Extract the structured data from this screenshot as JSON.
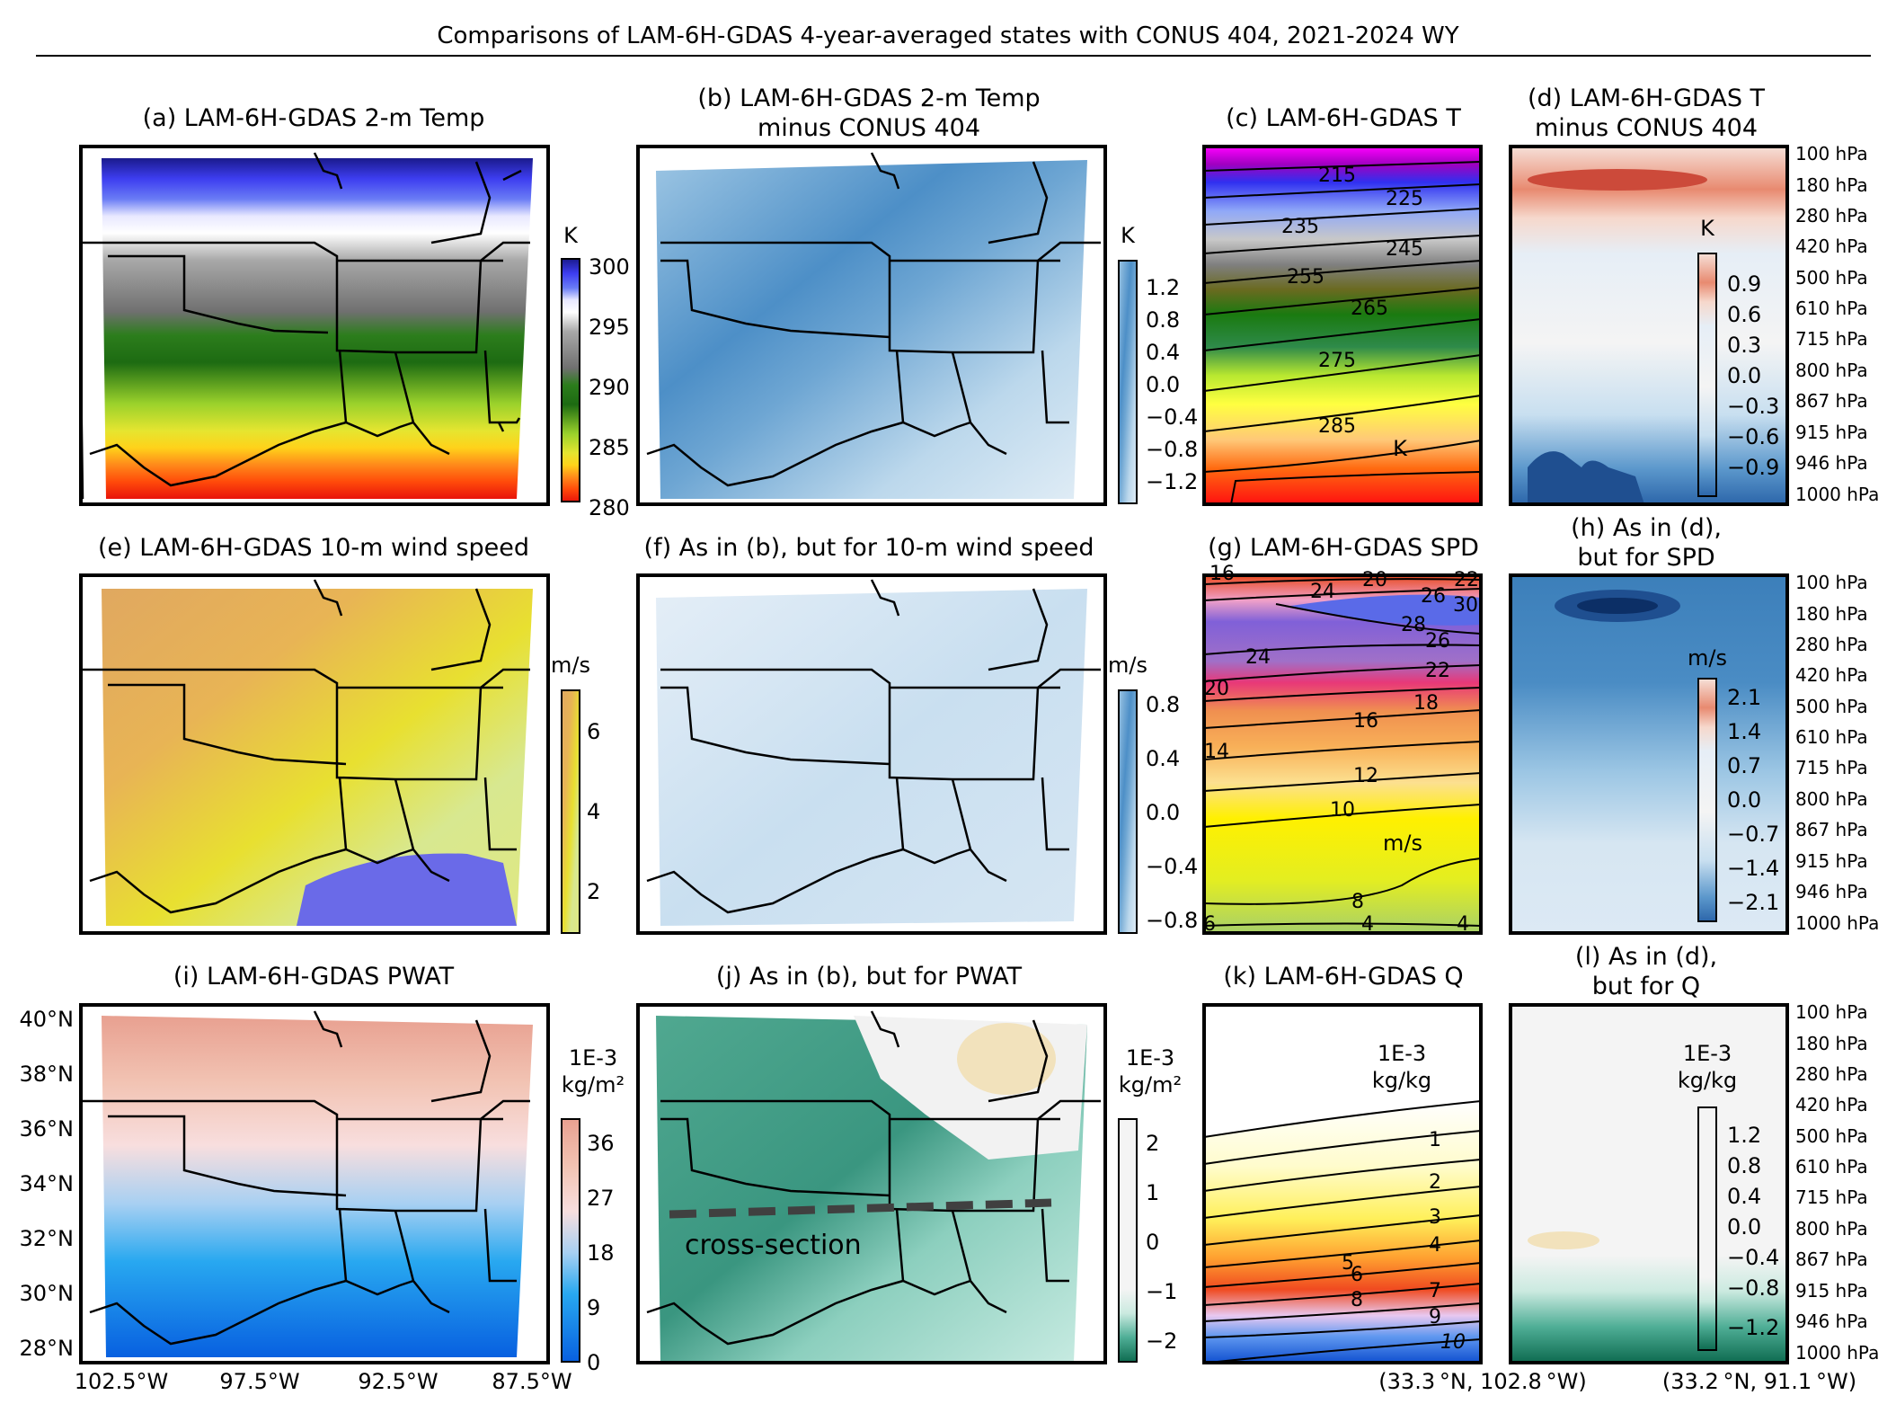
{
  "suptitle": "Comparisons of LAM-6H-GDAS 4-year-averaged states with CONUS 404, 2021-2024 WY",
  "colors": {
    "coast": "#000000",
    "state_line": "#000000",
    "cross_section": "#404040"
  },
  "panels": {
    "a": {
      "title": [
        "(a) LAM-6H-GDAS 2-m Temp"
      ],
      "units": [
        "K"
      ],
      "ticks": [
        "300",
        "295",
        "290",
        "285",
        "280"
      ]
    },
    "b": {
      "title": [
        "(b) LAM-6H-GDAS 2-m Temp",
        "minus CONUS 404"
      ],
      "units": [
        "K"
      ],
      "ticks": [
        "1.2",
        "0.8",
        "0.4",
        "0.0",
        "−0.4",
        "−0.8",
        "−1.2"
      ]
    },
    "c": {
      "title": [
        "(c) LAM-6H-GDAS T"
      ],
      "units": "K",
      "contours": [
        "215",
        "225",
        "235",
        "245",
        "255",
        "265",
        "275",
        "285"
      ]
    },
    "d": {
      "title": [
        "(d) LAM-6H-GDAS T",
        "minus CONUS 404"
      ],
      "units": [
        "K"
      ],
      "ticks": [
        "0.9",
        "0.6",
        "0.3",
        "0.0",
        "−0.3",
        "−0.6",
        "−0.9"
      ]
    },
    "e": {
      "title": [
        "(e) LAM-6H-GDAS 10-m wind speed"
      ],
      "units": [
        "m/s"
      ],
      "ticks": [
        "6",
        "4",
        "2"
      ]
    },
    "f": {
      "title": [
        "(f) As in (b), but for 10-m wind speed"
      ],
      "units": [
        "m/s"
      ],
      "ticks": [
        "0.8",
        "0.4",
        "0.0",
        "−0.4",
        "−0.8"
      ]
    },
    "g": {
      "title": [
        "(g) LAM-6H-GDAS SPD"
      ],
      "units": "m/s",
      "contours": [
        "16",
        "24",
        "20",
        "26",
        "28",
        "30",
        "26",
        "22",
        "24",
        "20",
        "18",
        "16",
        "14",
        "12",
        "10",
        "8",
        "6",
        "4",
        "4",
        "22"
      ]
    },
    "h": {
      "title": [
        "(h) As in (d),",
        "but for SPD"
      ],
      "units": [
        "m/s"
      ],
      "ticks": [
        "2.1",
        "1.4",
        "0.7",
        "0.0",
        "−0.7",
        "−1.4",
        "−2.1"
      ]
    },
    "i": {
      "title": [
        "(i) LAM-6H-GDAS PWAT"
      ],
      "units": [
        "1E-3",
        "kg/m²"
      ],
      "ticks": [
        "36",
        "27",
        "18",
        "9",
        "0"
      ]
    },
    "j": {
      "title": [
        "(j) As in (b), but for PWAT"
      ],
      "units": [
        "1E-3",
        "kg/m²"
      ],
      "ticks": [
        "2",
        "1",
        "0",
        "−1",
        "−2"
      ],
      "annotation": "cross-section"
    },
    "k": {
      "title": [
        "(k) LAM-6H-GDAS Q"
      ],
      "units": [
        "1E-3",
        "kg/kg"
      ],
      "contours": [
        "1",
        "2",
        "3",
        "4",
        "5",
        "6",
        "7",
        "8",
        "9",
        "10"
      ]
    },
    "l": {
      "title": [
        "(l) As in (d),",
        "but for Q"
      ],
      "units": [
        "1E-3",
        "kg/kg"
      ],
      "ticks": [
        "1.2",
        "0.8",
        "0.4",
        "0.0",
        "−0.4",
        "−0.8",
        "−1.2"
      ]
    }
  },
  "pressure_levels": [
    "100 hPa",
    "180 hPa",
    "280 hPa",
    "420 hPa",
    "500 hPa",
    "610 hPa",
    "715 hPa",
    "800 hPa",
    "867 hPa",
    "915 hPa",
    "946 hPa",
    "1000 hPa"
  ],
  "lat_ticks": [
    "40°N",
    "38°N",
    "36°N",
    "34°N",
    "32°N",
    "30°N",
    "28°N"
  ],
  "lon_ticks": [
    "102.5°W",
    "97.5°W",
    "92.5°W",
    "87.5°W"
  ],
  "cross_section_ends": [
    "(33.3 °N, 102.8 °W)",
    "(33.2 °N, 91.1 °W)"
  ],
  "chart_data": [
    {
      "type": "heatmap",
      "panel": "a",
      "title": "(a) LAM-6H-GDAS 2-m Temp",
      "colorbar_label": "K",
      "colorbar_range": [
        280,
        300
      ],
      "colorbar_ticks": [
        280,
        285,
        290,
        295,
        300
      ],
      "lat_range": [
        27.5,
        40.5
      ],
      "lon_range": [
        -103,
        -87
      ]
    },
    {
      "type": "heatmap",
      "panel": "b",
      "title": "(b) LAM-6H-GDAS 2-m Temp minus CONUS 404",
      "colorbar_label": "K",
      "colorbar_range": [
        -1.4,
        1.4
      ],
      "colorbar_ticks": [
        -1.2,
        -0.8,
        -0.4,
        0.0,
        0.4,
        0.8,
        1.2
      ]
    },
    {
      "type": "heatmap",
      "panel": "c",
      "title": "(c) LAM-6H-GDAS T",
      "units": "K",
      "contour_levels": [
        215,
        225,
        235,
        245,
        255,
        265,
        275,
        285
      ],
      "vertical_levels_hPa": [
        100,
        180,
        280,
        420,
        500,
        610,
        715,
        800,
        867,
        915,
        946,
        1000
      ]
    },
    {
      "type": "heatmap",
      "panel": "d",
      "title": "(d) LAM-6H-GDAS T minus CONUS 404",
      "colorbar_label": "K",
      "colorbar_range": [
        -1.05,
        1.05
      ],
      "colorbar_ticks": [
        -0.9,
        -0.6,
        -0.3,
        0.0,
        0.3,
        0.6,
        0.9
      ],
      "vertical_levels_hPa": [
        100,
        180,
        280,
        420,
        500,
        610,
        715,
        800,
        867,
        915,
        946,
        1000
      ]
    },
    {
      "type": "heatmap",
      "panel": "e",
      "title": "(e) LAM-6H-GDAS 10-m wind speed",
      "colorbar_label": "m/s",
      "colorbar_range": [
        1,
        7
      ],
      "colorbar_ticks": [
        2,
        4,
        6
      ]
    },
    {
      "type": "heatmap",
      "panel": "f",
      "title": "(f) As in (b), but for 10-m wind speed",
      "colorbar_label": "m/s",
      "colorbar_range": [
        -0.9,
        0.9
      ],
      "colorbar_ticks": [
        -0.8,
        -0.4,
        0.0,
        0.4,
        0.8
      ]
    },
    {
      "type": "heatmap",
      "panel": "g",
      "title": "(g) LAM-6H-GDAS SPD",
      "units": "m/s",
      "contour_levels": [
        4,
        6,
        8,
        10,
        12,
        14,
        16,
        18,
        20,
        22,
        24,
        26,
        28,
        30
      ]
    },
    {
      "type": "heatmap",
      "panel": "h",
      "title": "(h) As in (d), but for SPD",
      "colorbar_label": "m/s",
      "colorbar_range": [
        -2.45,
        2.45
      ],
      "colorbar_ticks": [
        -2.1,
        -1.4,
        -0.7,
        0.0,
        0.7,
        1.4,
        2.1
      ]
    },
    {
      "type": "heatmap",
      "panel": "i",
      "title": "(i) LAM-6H-GDAS PWAT",
      "colorbar_label": "1E-3 kg/m^2",
      "colorbar_range": [
        0,
        40
      ],
      "colorbar_ticks": [
        0,
        9,
        18,
        27,
        36
      ],
      "lat_ticks": [
        28,
        30,
        32,
        34,
        36,
        38,
        40
      ],
      "lon_ticks": [
        -102.5,
        -97.5,
        -92.5,
        -87.5
      ]
    },
    {
      "type": "heatmap",
      "panel": "j",
      "title": "(j) As in (b), but for PWAT",
      "colorbar_label": "1E-3 kg/m^2",
      "colorbar_range": [
        -2.5,
        2.5
      ],
      "colorbar_ticks": [
        -2,
        -1,
        0,
        1,
        2
      ],
      "cross_section": {
        "from": [
          33.3,
          -102.8
        ],
        "to": [
          33.2,
          -91.1
        ]
      }
    },
    {
      "type": "heatmap",
      "panel": "k",
      "title": "(k) LAM-6H-GDAS Q",
      "units": "1E-3 kg/kg",
      "contour_levels": [
        1,
        2,
        3,
        4,
        5,
        6,
        7,
        8,
        9,
        10
      ]
    },
    {
      "type": "heatmap",
      "panel": "l",
      "title": "(l) As in (d), but for Q",
      "colorbar_label": "1E-3 kg/kg",
      "colorbar_range": [
        -1.4,
        1.4
      ],
      "colorbar_ticks": [
        -1.2,
        -0.8,
        -0.4,
        0.0,
        0.4,
        0.8,
        1.2
      ]
    }
  ]
}
